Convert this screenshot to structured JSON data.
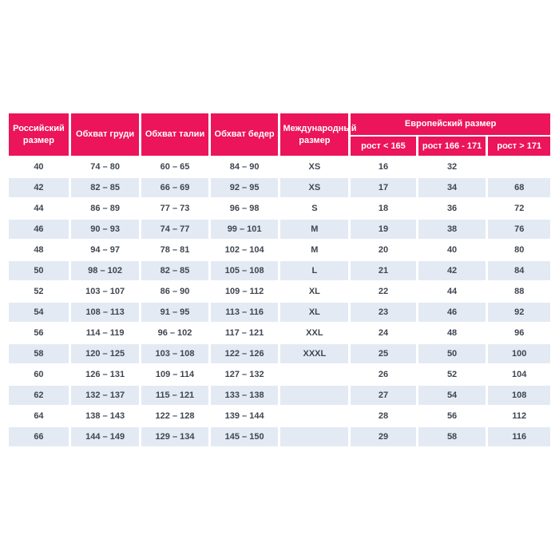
{
  "table": {
    "colors": {
      "header_bg": "#EC145A",
      "stripe_bg": "#E3EAF4",
      "body_text": "#3F4650",
      "header_text": "#FFFFFF"
    },
    "headers": {
      "russian_size": "Российский размер",
      "chest": "Обхват груди",
      "waist": "Обхват талии",
      "hips": "Обхват бедер",
      "international_size": "Международный размер",
      "european_size": "Европейский размер",
      "height_lt_165": "рост < 165",
      "height_166_171": "рост 166 - 171",
      "height_gt_171": "рост > 171"
    },
    "rows": [
      [
        "40",
        "74 – 80",
        "60 – 65",
        "84 – 90",
        "XS",
        "16",
        "32",
        ""
      ],
      [
        "42",
        "82 – 85",
        "66 – 69",
        "92 – 95",
        "XS",
        "17",
        "34",
        "68"
      ],
      [
        "44",
        "86 – 89",
        "77 – 73",
        "96 – 98",
        "S",
        "18",
        "36",
        "72"
      ],
      [
        "46",
        "90 – 93",
        "74 – 77",
        "99 – 101",
        "M",
        "19",
        "38",
        "76"
      ],
      [
        "48",
        "94 – 97",
        "78 – 81",
        "102 – 104",
        "M",
        "20",
        "40",
        "80"
      ],
      [
        "50",
        "98 – 102",
        "82 – 85",
        "105 – 108",
        "L",
        "21",
        "42",
        "84"
      ],
      [
        "52",
        "103 – 107",
        "86 – 90",
        "109 – 112",
        "XL",
        "22",
        "44",
        "88"
      ],
      [
        "54",
        "108 – 113",
        "91 – 95",
        "113 – 116",
        "XL",
        "23",
        "46",
        "92"
      ],
      [
        "56",
        "114 – 119",
        "96 – 102",
        "117 – 121",
        "XXL",
        "24",
        "48",
        "96"
      ],
      [
        "58",
        "120 – 125",
        "103 – 108",
        "122 – 126",
        "XXXL",
        "25",
        "50",
        "100"
      ],
      [
        "60",
        "126 – 131",
        "109 – 114",
        "127 – 132",
        "",
        "26",
        "52",
        "104"
      ],
      [
        "62",
        "132 – 137",
        "115 – 121",
        "133 – 138",
        "",
        "27",
        "54",
        "108"
      ],
      [
        "64",
        "138 – 143",
        "122 – 128",
        "139 – 144",
        "",
        "28",
        "56",
        "112"
      ],
      [
        "66",
        "144 – 149",
        "129 – 134",
        "145 – 150",
        "",
        "29",
        "58",
        "116"
      ]
    ]
  }
}
